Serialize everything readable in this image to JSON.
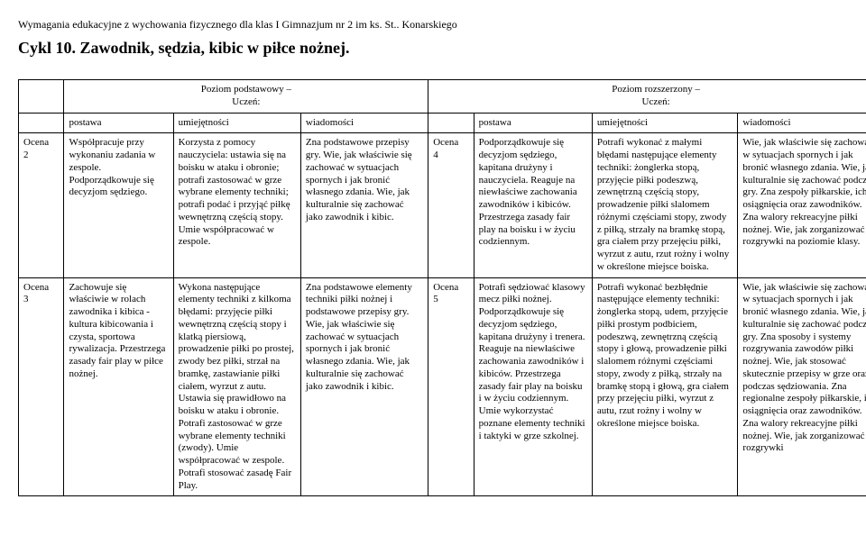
{
  "header": "Wymagania edukacyjne z wychowania fizycznego dla klas I Gimnazjum nr 2 im ks. St.. Konarskiego",
  "title": "Cykl 10. Zawodnik, sędzia, kibic w piłce nożnej.",
  "table": {
    "group_headers": {
      "left_empty": "",
      "basic": "Poziom podstawowy –\nUczeń:",
      "advanced": "Poziom rozszerzony –\nUczeń:"
    },
    "sub_headers": {
      "postawa": "postawa",
      "umiejetnosci": "umiejętności",
      "wiadomosci": "wiadomości"
    },
    "rows": [
      {
        "label": "Ocena\n2",
        "p_postawa": "Współpracuje przy wykonaniu zadania w zespole. Podporządkowuje się decyzjom sędziego.",
        "p_umiej": "Korzysta z pomocy nauczyciela: ustawia się na boisku w ataku i obronie; potrafi zastosować w grze wybrane elementy techniki; potrafi podać i przyjąć piłkę wewnętrzną częścią stopy. Umie współpracować w zespole.",
        "p_wiad": "Zna podstawowe przepisy gry. Wie, jak właściwie się zachować w sytuacjach spornych i jak bronić własnego zdania. Wie, jak kulturalnie się zachować jako zawodnik i kibic.",
        "r_label": "Ocena\n4",
        "r_postawa": "Podporządkowuje się decyzjom sędziego, kapitana drużyny i nauczyciela. Reaguje na niewłaściwe zachowania zawodników i kibiców. Przestrzega zasady fair play na boisku i w życiu codziennym.",
        "r_umiej": "Potrafi wykonać z małymi błędami następujące elementy techniki: żonglerka stopą, przyjęcie piłki podeszwą, zewnętrzną częścią stopy, prowadzenie piłki slalomem różnymi częściami stopy, zwody z piłką, strzały na bramkę stopą, gra ciałem przy przejęciu piłki, wyrzut z autu, rzut rożny i wolny w określone miejsce boiska.",
        "r_wiad": "Wie, jak właściwie się zachować w sytuacjach spornych i jak bronić własnego zdania. Wie, jak kulturalnie się zachować podczas gry. Zna zespoły piłkarskie, ich osiągnięcia oraz zawodników. Zna walory rekreacyjne piłki nożnej. Wie, jak zorganizować rozgrywki na poziomie klasy."
      },
      {
        "label": "Ocena\n3",
        "p_postawa": "Zachowuje się właściwie w rolach zawodnika i kibica - kultura kibicowania i czysta, sportowa rywalizacja. Przestrzega zasady fair play w piłce nożnej.",
        "p_umiej": "Wykona następujące elementy techniki z kilkoma błędami: przyjęcie piłki wewnętrzną częścią stopy i klatką piersiową, prowadzenie piłki po prostej, zwody bez piłki, strzał na bramkę, zastawianie piłki ciałem, wyrzut z autu. Ustawia się prawidłowo na boisku w ataku i obronie. Potrafi zastosować w grze wybrane elementy techniki (zwody). Umie współpracować w zespole. Potrafi stosować zasadę Fair Play.",
        "p_wiad": "Zna podstawowe elementy techniki piłki nożnej i podstawowe przepisy gry. Wie, jak właściwie się zachować w sytuacjach spornych i jak bronić własnego zdania. Wie, jak kulturalnie się zachować jako zawodnik i kibic.",
        "r_label": "Ocena\n5",
        "r_postawa": "Potrafi sędziować klasowy mecz piłki nożnej. Podporządkowuje się decyzjom sędziego, kapitana drużyny i trenera. Reaguje na niewłaściwe zachowania zawodników i kibiców. Przestrzega zasady fair play na boisku i w życiu codziennym. Umie wykorzystać poznane elementy techniki i taktyki w grze szkolnej.",
        "r_umiej": "Potrafi wykonać bezbłędnie następujące elementy techniki: żonglerka stopą, udem, przyjęcie piłki prostym podbiciem, podeszwą, zewnętrzną częścią stopy i głową, prowadzenie piłki slalomem różnymi częściami stopy, zwody z piłką, strzały na bramkę stopą i głową, gra ciałem przy przejęciu piłki, wyrzut z autu, rzut rożny i wolny w określone miejsce boiska.",
        "r_wiad": "Wie, jak właściwie się zachować w sytuacjach spornych i jak bronić własnego zdania. Wie, jak kulturalnie się zachować podczas gry. Zna sposoby i systemy rozgrywania zawodów piłki nożnej. Wie, jak stosować skutecznie przepisy w grze oraz podczas sędziowania. Zna regionalne zespoły piłkarskie, ich osiągnięcia oraz zawodników. Zna walory rekreacyjne piłki nożnej. Wie, jak zorganizować rozgrywki"
      }
    ]
  }
}
